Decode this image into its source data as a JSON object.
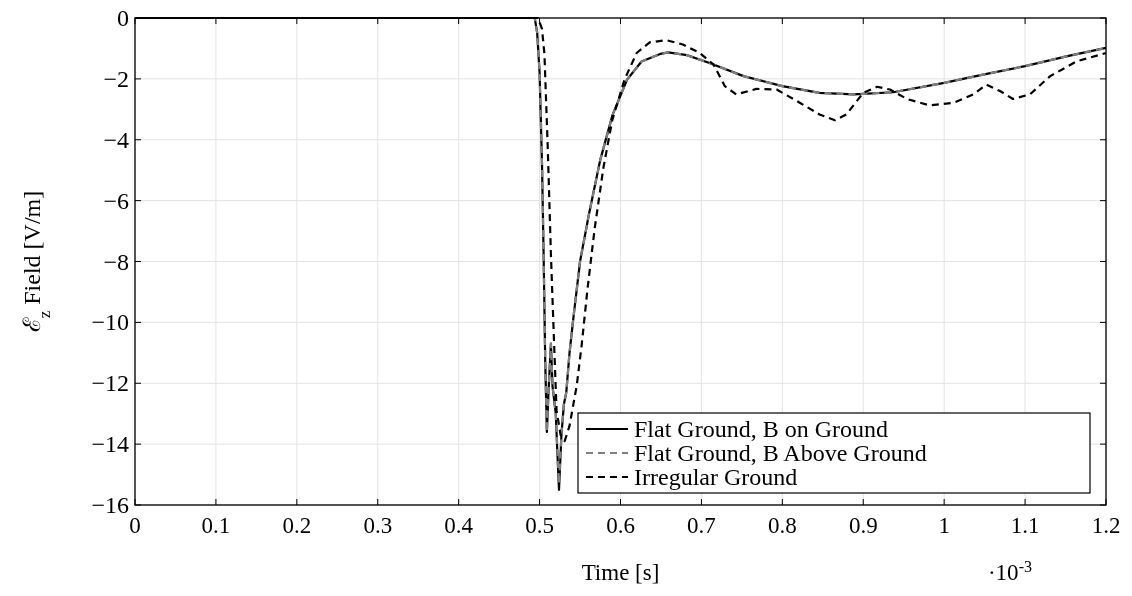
{
  "chart_data": {
    "type": "line",
    "xlabel": "Time [s]",
    "ylabel": "ℰ$_{z}$ Field [V/m]",
    "xlim": [
      0,
      1.2
    ],
    "xticks": [
      0,
      0.1,
      0.2,
      0.3,
      0.4,
      0.5,
      0.6,
      0.7,
      0.8,
      0.9,
      1,
      1.1,
      1.2
    ],
    "ylim": [
      -16,
      0
    ],
    "yticks": [
      -16,
      -14,
      -12,
      -10,
      -8,
      -6,
      -4,
      -2,
      0
    ],
    "grid": true,
    "legend": "bottom right",
    "marker": "none",
    "annotations": [
      "·10$^{-3}$"
    ],
    "series": [
      {
        "name": "Flat Ground, B on Ground",
        "color": "#000000",
        "line_style": "solid",
        "x": [
          0,
          0.494,
          0.497,
          0.5,
          0.503,
          0.505,
          0.507,
          0.509,
          0.511,
          0.514,
          0.516,
          0.52,
          0.522,
          0.524,
          0.527,
          0.53,
          0.533,
          0.537,
          0.542,
          0.55,
          0.561,
          0.575,
          0.59,
          0.608,
          0.626,
          0.649,
          0.659,
          0.682,
          0.71,
          0.752,
          0.8,
          0.846,
          0.888,
          0.937,
          1.0,
          1.048,
          1.1,
          1.151,
          1.2
        ],
        "values": [
          0,
          0,
          -0.48,
          -1.8,
          -4.8,
          -7.8,
          -11.3,
          -13.6,
          -12.3,
          -10.7,
          -12.1,
          -13,
          -14.3,
          -15.5,
          -13.7,
          -12.7,
          -12.3,
          -11,
          -9.8,
          -8,
          -6.45,
          -4.66,
          -3.2,
          -2.03,
          -1.43,
          -1.18,
          -1.13,
          -1.22,
          -1.48,
          -1.91,
          -2.24,
          -2.46,
          -2.51,
          -2.44,
          -2.13,
          -1.86,
          -1.58,
          -1.26,
          -0.98
        ]
      },
      {
        "name": "Flat Ground, B Above Ground",
        "color": "#808080",
        "line_style": "dashed",
        "x": [
          0,
          0.494,
          0.497,
          0.5,
          0.503,
          0.505,
          0.507,
          0.509,
          0.511,
          0.514,
          0.516,
          0.52,
          0.522,
          0.524,
          0.527,
          0.53,
          0.533,
          0.537,
          0.542,
          0.55,
          0.561,
          0.575,
          0.59,
          0.608,
          0.626,
          0.649,
          0.659,
          0.682,
          0.71,
          0.752,
          0.8,
          0.846,
          0.888,
          0.937,
          1.0,
          1.048,
          1.1,
          1.151,
          1.2
        ],
        "values": [
          0,
          0,
          -0.48,
          -1.8,
          -4.8,
          -7.8,
          -11.3,
          -13.6,
          -12.3,
          -10.7,
          -12.1,
          -13,
          -14.2,
          -15.3,
          -13.7,
          -12.7,
          -12.3,
          -11,
          -9.8,
          -8,
          -6.45,
          -4.66,
          -3.2,
          -2.03,
          -1.43,
          -1.18,
          -1.13,
          -1.22,
          -1.48,
          -1.91,
          -2.24,
          -2.46,
          -2.51,
          -2.44,
          -2.13,
          -1.86,
          -1.58,
          -1.26,
          -0.98
        ]
      },
      {
        "name": "Irregular Ground",
        "color": "#000000",
        "line_style": "dashed",
        "x": [
          0,
          0.498,
          0.503,
          0.506,
          0.51,
          0.514,
          0.518,
          0.521,
          0.526,
          0.531,
          0.537,
          0.546,
          0.552,
          0.559,
          0.568,
          0.579,
          0.59,
          0.605,
          0.62,
          0.636,
          0.657,
          0.677,
          0.698,
          0.715,
          0.729,
          0.743,
          0.768,
          0.793,
          0.822,
          0.846,
          0.865,
          0.879,
          0.9,
          0.917,
          0.933,
          0.954,
          0.982,
          1.011,
          1.036,
          1.052,
          1.069,
          1.085,
          1.106,
          1.131,
          1.164,
          1.2
        ],
        "values": [
          0,
          0,
          -0.36,
          -1.19,
          -4.18,
          -7.76,
          -10.75,
          -12.9,
          -13.7,
          -13.9,
          -13.4,
          -12.06,
          -10.75,
          -8.96,
          -6.93,
          -4.9,
          -3.34,
          -2.02,
          -1.15,
          -0.8,
          -0.73,
          -0.87,
          -1.15,
          -1.53,
          -2.24,
          -2.51,
          -2.33,
          -2.35,
          -2.79,
          -3.17,
          -3.36,
          -3.17,
          -2.46,
          -2.26,
          -2.35,
          -2.66,
          -2.87,
          -2.79,
          -2.51,
          -2.19,
          -2.4,
          -2.66,
          -2.51,
          -1.91,
          -1.42,
          -1.15
        ]
      }
    ]
  }
}
